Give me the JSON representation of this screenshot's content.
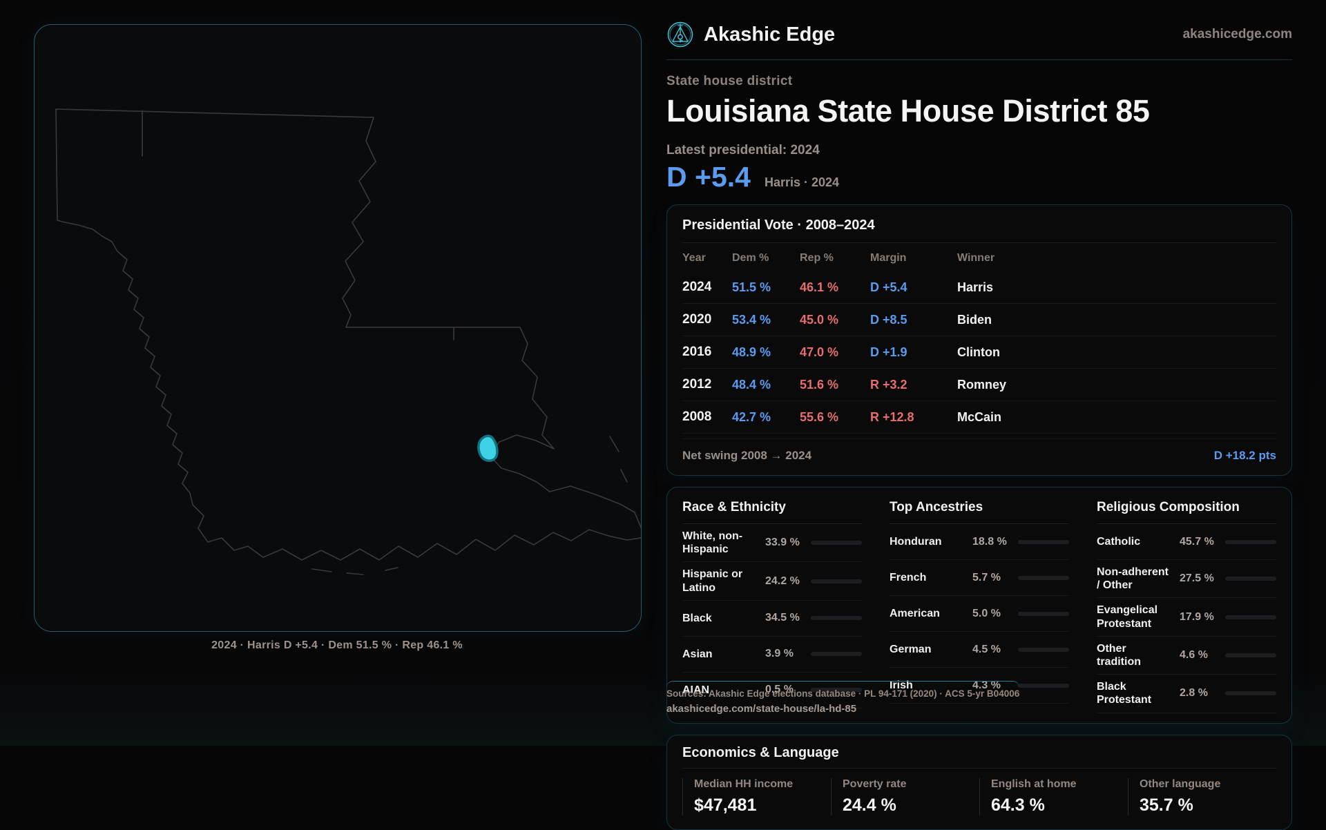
{
  "brand": {
    "name": "Akashic Edge",
    "domain": "akashicedge.com"
  },
  "page": {
    "eyebrow": "State house district",
    "title": "Louisiana State House District 85",
    "latest_label": "Latest presidential: 2024",
    "margin_value": "D +5.4",
    "margin_context": "Harris · 2024"
  },
  "colors": {
    "dem_blue": "#5b9cf0",
    "rep_red": "#e76e6e",
    "accent_teal": "#45ccdf",
    "map_highlight": "#41ddf2",
    "map_highlight_stroke": "#147888"
  },
  "map": {
    "caption": "2024 · Harris D +5.4 · Dem 51.5 % · Rep 46.1 %"
  },
  "presidential_table": {
    "title": "Presidential Vote · 2008–2024",
    "columns": [
      "Year",
      "Dem %",
      "Rep %",
      "Margin",
      "Winner"
    ],
    "rows": [
      {
        "year": "2024",
        "dem": "51.5 %",
        "rep": "46.1 %",
        "margin": "D +5.4",
        "margin_party": "D",
        "winner": "Harris"
      },
      {
        "year": "2020",
        "dem": "53.4 %",
        "rep": "45.0 %",
        "margin": "D +8.5",
        "margin_party": "D",
        "winner": "Biden"
      },
      {
        "year": "2016",
        "dem": "48.9 %",
        "rep": "47.0 %",
        "margin": "D +1.9",
        "margin_party": "D",
        "winner": "Clinton"
      },
      {
        "year": "2012",
        "dem": "48.4 %",
        "rep": "51.6 %",
        "margin": "R +3.2",
        "margin_party": "R",
        "winner": "Romney"
      },
      {
        "year": "2008",
        "dem": "42.7 %",
        "rep": "55.6 %",
        "margin": "R +12.8",
        "margin_party": "R",
        "winner": "McCain"
      }
    ],
    "net_swing_label": "Net swing 2008 → 2024",
    "net_swing_value": "D +18.2 pts"
  },
  "race_ethnicity": {
    "title": "Race & Ethnicity",
    "rows": [
      {
        "label": "White, non-Hispanic",
        "value": "33.9 %",
        "pct": 33.9,
        "color": "#8ea3c2"
      },
      {
        "label": "Hispanic or Latino",
        "value": "24.2 %",
        "pct": 24.2,
        "color": "#e2a23b"
      },
      {
        "label": "Black",
        "value": "34.5 %",
        "pct": 34.5,
        "color": "#9d84ea"
      },
      {
        "label": "Asian",
        "value": "3.9 %",
        "pct": 3.9,
        "color": "#2ed18e"
      },
      {
        "label": "AIAN",
        "value": "0.5 %",
        "pct": 0.5,
        "color": "#d96a3f"
      }
    ]
  },
  "ancestries": {
    "title": "Top Ancestries",
    "rows": [
      {
        "label": "Honduran",
        "value": "18.8 %",
        "pct": 18.8,
        "color": "#e2a23b"
      },
      {
        "label": "French",
        "value": "5.7 %",
        "pct": 5.7,
        "color": "#a9bccf"
      },
      {
        "label": "American",
        "value": "5.0 %",
        "pct": 5.0,
        "color": "#a9bccf"
      },
      {
        "label": "German",
        "value": "4.5 %",
        "pct": 4.5,
        "color": "#a9bccf"
      },
      {
        "label": "Irish",
        "value": "4.3 %",
        "pct": 4.3,
        "color": "#a9bccf"
      }
    ]
  },
  "religion": {
    "title": "Religious Composition",
    "rows": [
      {
        "label": "Catholic",
        "value": "45.7 %",
        "pct": 45.7,
        "color": "#d9ab25"
      },
      {
        "label": "Non-adherent / Other",
        "value": "27.5 %",
        "pct": 27.5,
        "color": "#8b94a6"
      },
      {
        "label": "Evangelical Protestant",
        "value": "17.9 %",
        "pct": 17.9,
        "color": "#e06868"
      },
      {
        "label": "Other tradition",
        "value": "4.6 %",
        "pct": 4.6,
        "color": "#c2c8d2"
      },
      {
        "label": "Black Protestant",
        "value": "2.8 %",
        "pct": 2.8,
        "color": "#8577e8"
      }
    ]
  },
  "economics": {
    "title": "Economics & Language",
    "stats": [
      {
        "label": "Median HH income",
        "value": "$47,481"
      },
      {
        "label": "Poverty rate",
        "value": "24.4 %"
      },
      {
        "label": "English at home",
        "value": "64.3 %"
      },
      {
        "label": "Other language",
        "value": "35.7 %"
      }
    ]
  },
  "footer": {
    "sources": "Sources: Akashic Edge elections database · PL 94-171 (2020) · ACS 5-yr B04006",
    "permalink": "akashicedge.com/state-house/la-hd-85"
  }
}
